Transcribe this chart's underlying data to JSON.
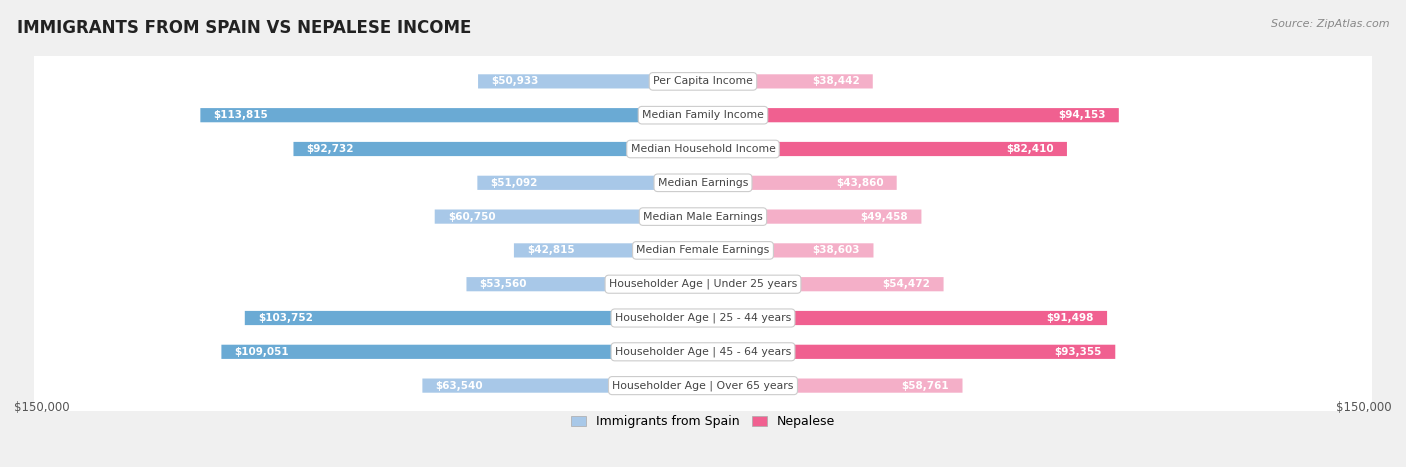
{
  "title": "IMMIGRANTS FROM SPAIN VS NEPALESE INCOME",
  "source": "Source: ZipAtlas.com",
  "categories": [
    "Per Capita Income",
    "Median Family Income",
    "Median Household Income",
    "Median Earnings",
    "Median Male Earnings",
    "Median Female Earnings",
    "Householder Age | Under 25 years",
    "Householder Age | 25 - 44 years",
    "Householder Age | 45 - 64 years",
    "Householder Age | Over 65 years"
  ],
  "spain_values": [
    50933,
    113815,
    92732,
    51092,
    60750,
    42815,
    53560,
    103752,
    109051,
    63540
  ],
  "nepalese_values": [
    38442,
    94153,
    82410,
    43860,
    49458,
    38603,
    54472,
    91498,
    93355,
    58761
  ],
  "spain_labels": [
    "$50,933",
    "$113,815",
    "$92,732",
    "$51,092",
    "$60,750",
    "$42,815",
    "$53,560",
    "$103,752",
    "$109,051",
    "$63,540"
  ],
  "nepalese_labels": [
    "$38,442",
    "$94,153",
    "$82,410",
    "$43,860",
    "$49,458",
    "$38,603",
    "$54,472",
    "$91,498",
    "$93,355",
    "$58,761"
  ],
  "spain_color_light": "#a8c8e8",
  "spain_color_dark": "#6aaad4",
  "nepalese_color_light": "#f4afc8",
  "nepalese_color_dark": "#f06090",
  "max_value": 150000,
  "background_color": "#f0f0f0",
  "row_bg_color": "#ffffff",
  "row_alt_bg": "#f8f8f8",
  "legend_spain": "Immigrants from Spain",
  "legend_nepalese": "Nepalese",
  "xlabel_left": "$150,000",
  "xlabel_right": "$150,000",
  "inside_label_threshold": 35000
}
